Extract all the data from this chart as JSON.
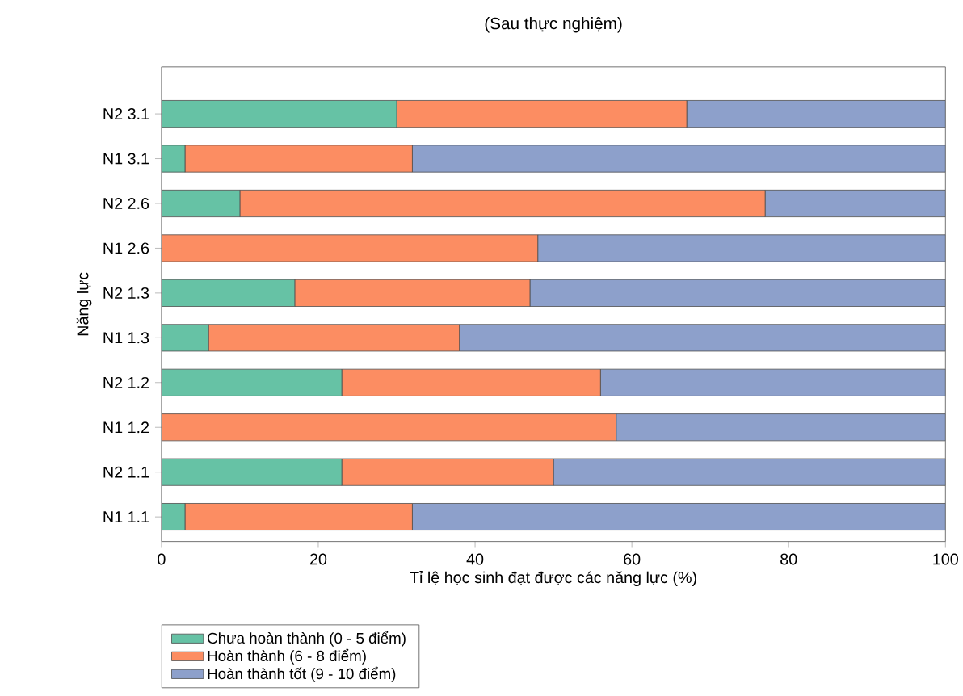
{
  "chart_data": {
    "type": "bar",
    "orientation": "horizontal",
    "stacked": true,
    "title": "(Sau thực nghiệm)",
    "xlabel": "Tỉ lệ học sinh đạt được các năng lực (%)",
    "ylabel": "Năng lực",
    "categories": [
      "N2 3.1",
      "N1 3.1",
      "N2 2.6",
      "N1 2.6",
      "N2 1.3",
      "N1 1.3",
      "N2 1.2",
      "N1 1.2",
      "N2 1.1",
      "N1 1.1"
    ],
    "series": [
      {
        "name": "Chưa hoàn thành (0 - 5 điểm)",
        "color": "#66c2a5",
        "values": [
          30,
          3,
          10,
          0,
          17,
          6,
          23,
          0,
          23,
          3
        ]
      },
      {
        "name": "Hoàn thành (6 - 8 điểm)",
        "color": "#fc8d62",
        "values": [
          37,
          29,
          67,
          48,
          30,
          32,
          33,
          58,
          27,
          29
        ]
      },
      {
        "name": "Hoàn thành tốt (9 - 10 điểm)",
        "color": "#8da0cb",
        "values": [
          33,
          68,
          23,
          52,
          53,
          62,
          44,
          42,
          50,
          68
        ]
      }
    ],
    "xlim": [
      0,
      100
    ],
    "xticks": [
      0,
      20,
      40,
      60,
      80,
      100
    ],
    "grid": false,
    "legend": "bottom left"
  }
}
